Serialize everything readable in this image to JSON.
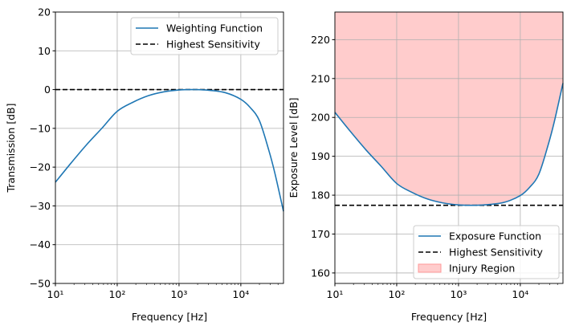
{
  "chart_data": [
    {
      "type": "line",
      "title": "",
      "xlabel": "Frequency [Hz]",
      "ylabel": "Transmission [dB]",
      "xscale": "log",
      "xlim": [
        10,
        49000
      ],
      "ylim": [
        -50,
        20
      ],
      "grid": true,
      "xticks": [
        10,
        100,
        1000,
        10000
      ],
      "xtick_labels": [
        "10¹",
        "10²",
        "10³",
        "10⁴"
      ],
      "yticks": [
        -50,
        -40,
        -30,
        -20,
        -10,
        0,
        10,
        20
      ],
      "ytick_labels": [
        "−50",
        "−40",
        "−30",
        "−20",
        "−10",
        "0",
        "10",
        "20"
      ],
      "legend_position": "top-right",
      "series": [
        {
          "name": "Weighting Function",
          "style": "solid",
          "color": "#1f77b4",
          "log10_x": [
            1.0,
            1.25,
            1.5,
            1.75,
            2.0,
            2.25,
            2.5,
            2.75,
            3.0,
            3.25,
            3.5,
            3.75,
            4.0,
            4.15,
            4.3,
            4.45,
            4.55,
            4.69
          ],
          "y": [
            -23.9,
            -19.0,
            -14.3,
            -10.0,
            -5.6,
            -3.3,
            -1.6,
            -0.6,
            -0.1,
            0.0,
            -0.2,
            -0.8,
            -2.5,
            -4.6,
            -8.0,
            -15.5,
            -21.5,
            -31.4
          ]
        },
        {
          "name": "Highest Sensitivity",
          "style": "dashed",
          "color": "#000000",
          "y_const": 0
        }
      ]
    },
    {
      "type": "line",
      "title": "",
      "xlabel": "Frequency [Hz]",
      "ylabel": "Exposure Level [dB]",
      "xscale": "log",
      "xlim": [
        10,
        49000
      ],
      "ylim": [
        157.3,
        227.1
      ],
      "grid": true,
      "xticks": [
        10,
        100,
        1000,
        10000
      ],
      "xtick_labels": [
        "10¹",
        "10²",
        "10³",
        "10⁴"
      ],
      "yticks": [
        160,
        170,
        180,
        190,
        200,
        210,
        220
      ],
      "ytick_labels": [
        "160",
        "170",
        "180",
        "190",
        "200",
        "210",
        "220"
      ],
      "legend_position": "bottom-right",
      "series": [
        {
          "name": "Exposure Function",
          "style": "solid",
          "color": "#1f77b4",
          "log10_x": [
            1.0,
            1.25,
            1.5,
            1.75,
            2.0,
            2.25,
            2.5,
            2.75,
            3.0,
            3.25,
            3.5,
            3.75,
            4.0,
            4.15,
            4.3,
            4.45,
            4.55,
            4.69
          ],
          "y": [
            201.3,
            196.4,
            191.7,
            187.4,
            183.0,
            180.7,
            179.0,
            178.0,
            177.5,
            177.4,
            177.6,
            178.2,
            179.9,
            182.0,
            185.4,
            192.9,
            198.9,
            208.8
          ]
        },
        {
          "name": "Highest Sensitivity",
          "style": "dashed",
          "color": "#000000",
          "y_const": 177.4
        },
        {
          "name": "Injury Region",
          "style": "fill",
          "color": "#ff9999",
          "fill_above": "Exposure Function"
        }
      ]
    }
  ]
}
